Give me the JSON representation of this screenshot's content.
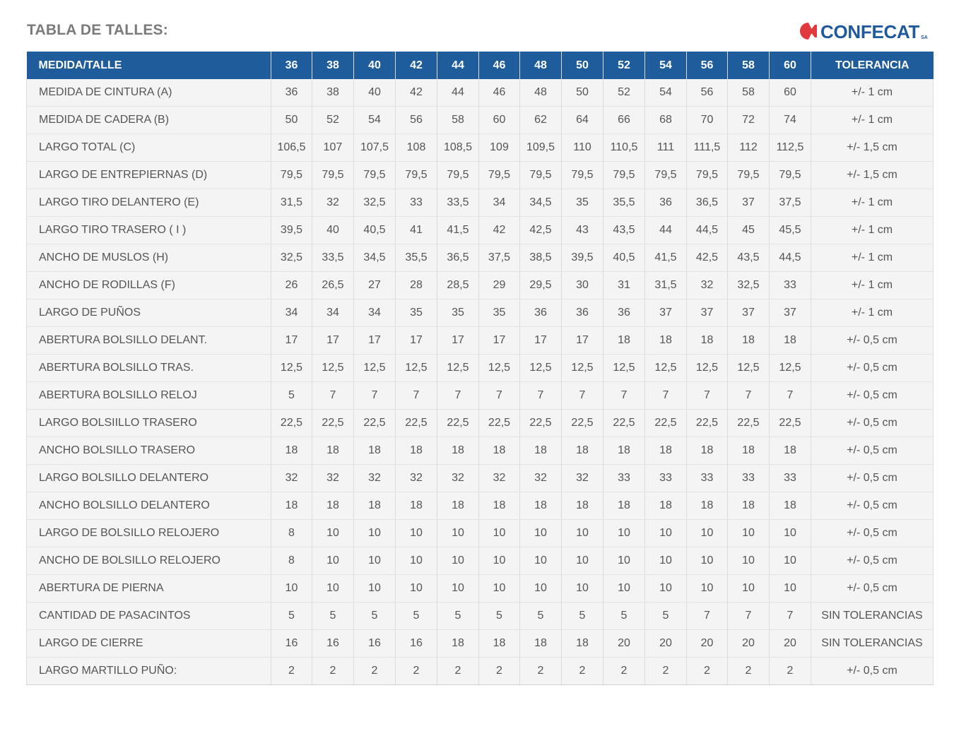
{
  "page": {
    "title": "TABLA DE TALLES:"
  },
  "logo": {
    "name": "CONFECAT",
    "suffix": "SA",
    "mark_color": "#e03a3e",
    "text_color": "#1f5a9e"
  },
  "colors": {
    "header_bg": "#1e5c9c",
    "row_bg": "#f4f4f4",
    "title": "#7a7a7a"
  },
  "table": {
    "headers": [
      "MEDIDA/TALLE",
      "36",
      "38",
      "40",
      "42",
      "44",
      "46",
      "48",
      "50",
      "52",
      "54",
      "56",
      "58",
      "60",
      "TOLERANCIA"
    ],
    "rows": [
      [
        "MEDIDA DE CINTURA (A)",
        "36",
        "38",
        "40",
        "42",
        "44",
        "46",
        "48",
        "50",
        "52",
        "54",
        "56",
        "58",
        "60",
        "+/- 1 cm"
      ],
      [
        "MEDIDA DE CADERA (B)",
        "50",
        "52",
        "54",
        "56",
        "58",
        "60",
        "62",
        "64",
        "66",
        "68",
        "70",
        "72",
        "74",
        "+/- 1 cm"
      ],
      [
        "LARGO TOTAL (C)",
        "106,5",
        "107",
        "107,5",
        "108",
        "108,5",
        "109",
        "109,5",
        "110",
        "110,5",
        "111",
        "111,5",
        "112",
        "112,5",
        "+/- 1,5 cm"
      ],
      [
        "LARGO DE ENTREPIERNAS (D)",
        "79,5",
        "79,5",
        "79,5",
        "79,5",
        "79,5",
        "79,5",
        "79,5",
        "79,5",
        "79,5",
        "79,5",
        "79,5",
        "79,5",
        "79,5",
        "+/- 1,5 cm"
      ],
      [
        "LARGO TIRO DELANTERO (E)",
        "31,5",
        "32",
        "32,5",
        "33",
        "33,5",
        "34",
        "34,5",
        "35",
        "35,5",
        "36",
        "36,5",
        "37",
        "37,5",
        "+/- 1 cm"
      ],
      [
        "LARGO TIRO TRASERO ( I )",
        "39,5",
        "40",
        "40,5",
        "41",
        "41,5",
        "42",
        "42,5",
        "43",
        "43,5",
        "44",
        "44,5",
        "45",
        "45,5",
        "+/- 1 cm"
      ],
      [
        "ANCHO DE MUSLOS (H)",
        "32,5",
        "33,5",
        "34,5",
        "35,5",
        "36,5",
        "37,5",
        "38,5",
        "39,5",
        "40,5",
        "41,5",
        "42,5",
        "43,5",
        "44,5",
        "+/- 1 cm"
      ],
      [
        "ANCHO DE RODILLAS (F)",
        "26",
        "26,5",
        "27",
        "28",
        "28,5",
        "29",
        "29,5",
        "30",
        "31",
        "31,5",
        "32",
        "32,5",
        "33",
        "+/- 1 cm"
      ],
      [
        "LARGO DE PUÑOS",
        "34",
        "34",
        "34",
        "35",
        "35",
        "35",
        "36",
        "36",
        "36",
        "37",
        "37",
        "37",
        "37",
        "+/- 1 cm"
      ],
      [
        "ABERTURA BOLSILLO DELANT.",
        "17",
        "17",
        "17",
        "17",
        "17",
        "17",
        "17",
        "17",
        "18",
        "18",
        "18",
        "18",
        "18",
        "+/- 0,5 cm"
      ],
      [
        "ABERTURA BOLSILLO TRAS.",
        "12,5",
        "12,5",
        "12,5",
        "12,5",
        "12,5",
        "12,5",
        "12,5",
        "12,5",
        "12,5",
        "12,5",
        "12,5",
        "12,5",
        "12,5",
        "+/- 0,5 cm"
      ],
      [
        "ABERTURA BOLSILLO RELOJ",
        "5",
        "7",
        "7",
        "7",
        "7",
        "7",
        "7",
        "7",
        "7",
        "7",
        "7",
        "7",
        "7",
        "+/- 0,5 cm"
      ],
      [
        "LARGO BOLSIILLO TRASERO",
        "22,5",
        "22,5",
        "22,5",
        "22,5",
        "22,5",
        "22,5",
        "22,5",
        "22,5",
        "22,5",
        "22,5",
        "22,5",
        "22,5",
        "22,5",
        "+/- 0,5 cm"
      ],
      [
        "ANCHO BOLSILLO TRASERO",
        "18",
        "18",
        "18",
        "18",
        "18",
        "18",
        "18",
        "18",
        "18",
        "18",
        "18",
        "18",
        "18",
        "+/- 0,5 cm"
      ],
      [
        "LARGO BOLSILLO DELANTERO",
        "32",
        "32",
        "32",
        "32",
        "32",
        "32",
        "32",
        "32",
        "33",
        "33",
        "33",
        "33",
        "33",
        "+/- 0,5 cm"
      ],
      [
        "ANCHO BOLSILLO DELANTERO",
        "18",
        "18",
        "18",
        "18",
        "18",
        "18",
        "18",
        "18",
        "18",
        "18",
        "18",
        "18",
        "18",
        "+/- 0,5 cm"
      ],
      [
        "LARGO DE BOLSILLO RELOJERO",
        "8",
        "10",
        "10",
        "10",
        "10",
        "10",
        "10",
        "10",
        "10",
        "10",
        "10",
        "10",
        "10",
        "+/- 0,5 cm"
      ],
      [
        "ANCHO DE BOLSILLO RELOJERO",
        "8",
        "10",
        "10",
        "10",
        "10",
        "10",
        "10",
        "10",
        "10",
        "10",
        "10",
        "10",
        "10",
        "+/- 0,5 cm"
      ],
      [
        "ABERTURA DE PIERNA",
        "10",
        "10",
        "10",
        "10",
        "10",
        "10",
        "10",
        "10",
        "10",
        "10",
        "10",
        "10",
        "10",
        "+/- 0,5 cm"
      ],
      [
        "CANTIDAD DE PASACINTOS",
        "5",
        "5",
        "5",
        "5",
        "5",
        "5",
        "5",
        "5",
        "5",
        "5",
        "7",
        "7",
        "7",
        "SIN TOLERANCIAS"
      ],
      [
        "LARGO DE CIERRE",
        "16",
        "16",
        "16",
        "16",
        "18",
        "18",
        "18",
        "18",
        "20",
        "20",
        "20",
        "20",
        "20",
        "SIN TOLERANCIAS"
      ],
      [
        "LARGO MARTILLO PUÑO:",
        "2",
        "2",
        "2",
        "2",
        "2",
        "2",
        "2",
        "2",
        "2",
        "2",
        "2",
        "2",
        "2",
        "+/- 0,5 cm"
      ]
    ]
  }
}
